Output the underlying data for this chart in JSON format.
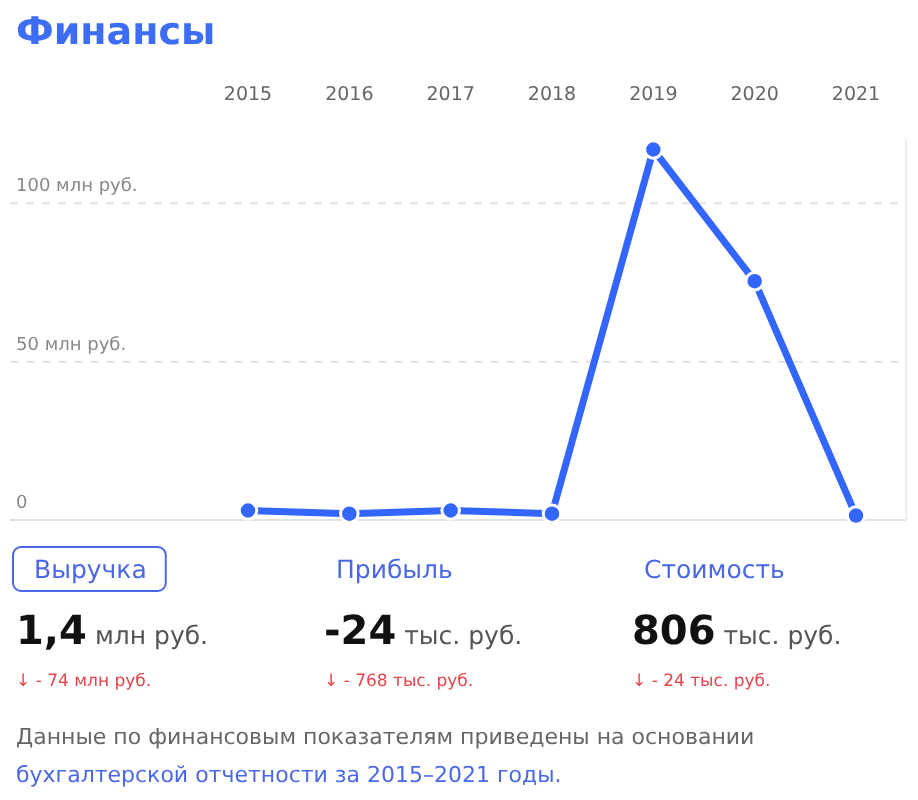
{
  "chart_data": [
    {
      "type": "line",
      "title": "Финансы",
      "categories": [
        "2015",
        "2016",
        "2017",
        "2018",
        "2019",
        "2020",
        "2021"
      ],
      "series": [
        {
          "color": "#3366ff",
          "values": [
            3,
            2,
            3,
            2,
            117,
            75.4,
            1.4
          ]
        }
      ],
      "ylim": [
        0,
        120
      ],
      "yticks": [
        0,
        {
          "value": 50,
          "label": "50 млн руб."
        },
        {
          "value": 100,
          "label": "100 млн руб."
        }
      ],
      "grid": "y",
      "marker": "circle",
      "line_style": "solid"
    },
    {
      "type": "other",
      "annotations": [
        "Выручка",
        "1,4",
        "млн руб.",
        "↓ - 74 млн руб.",
        "Прибыль",
        "-24",
        "тыс. руб.",
        "↓ - 768 тыс. руб.",
        "Стоимость",
        "806",
        "тыс. руб.",
        "↓ - 24 тыс. руб.",
        "Данные по финансовым показателям приведены на основании",
        "бухгалтерской отчетности за 2015–2021 годы."
      ]
    }
  ]
}
